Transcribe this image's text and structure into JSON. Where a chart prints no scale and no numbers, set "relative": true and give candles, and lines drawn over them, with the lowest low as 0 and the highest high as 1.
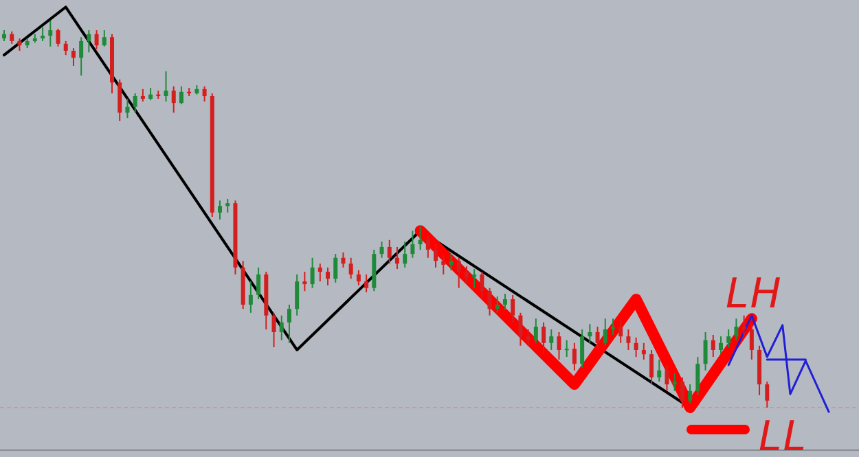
{
  "chart_data": {
    "type": "candlestick",
    "relative": true,
    "categories": [
      null,
      null,
      null,
      null,
      null,
      null,
      null,
      null,
      null,
      null,
      null,
      null,
      null,
      null,
      null,
      null,
      null,
      null,
      null,
      null,
      null,
      null,
      null,
      null,
      null,
      null,
      null,
      null,
      null,
      null,
      null,
      null,
      null,
      null,
      null,
      null,
      null,
      null,
      null,
      null,
      null,
      null,
      null,
      null,
      null,
      null,
      null,
      null,
      null,
      null,
      null,
      null,
      null,
      null,
      null,
      null,
      null,
      null,
      null,
      null,
      null,
      null,
      null,
      null,
      null,
      null,
      null,
      null,
      null,
      null,
      null,
      null,
      null,
      null,
      null,
      null,
      null,
      null,
      null,
      null,
      null,
      null,
      null,
      null,
      null,
      null,
      null,
      null,
      null,
      null,
      null,
      null,
      null,
      null,
      null,
      null,
      null,
      null,
      null,
      null,
      null,
      null,
      null,
      null,
      null,
      null,
      null,
      null
    ],
    "ohlc": [
      [
        0.954,
        0.975,
        0.947,
        0.965
      ],
      [
        0.965,
        0.972,
        0.94,
        0.947
      ],
      [
        0.947,
        0.954,
        0.922,
        0.936
      ],
      [
        0.936,
        0.954,
        0.929,
        0.947
      ],
      [
        0.947,
        0.965,
        0.943,
        0.954
      ],
      [
        0.954,
        0.982,
        0.947,
        0.961
      ],
      [
        0.961,
        1.0,
        0.933,
        0.975
      ],
      [
        0.975,
        0.979,
        0.933,
        0.94
      ],
      [
        0.94,
        0.947,
        0.911,
        0.922
      ],
      [
        0.922,
        0.929,
        0.883,
        0.904
      ],
      [
        0.904,
        0.957,
        0.858,
        0.947
      ],
      [
        0.947,
        0.975,
        0.918,
        0.965
      ],
      [
        0.965,
        0.975,
        0.926,
        0.936
      ],
      [
        0.936,
        0.975,
        0.933,
        0.957
      ],
      [
        0.957,
        0.965,
        0.812,
        0.84
      ],
      [
        0.84,
        0.848,
        0.741,
        0.762
      ],
      [
        0.762,
        0.798,
        0.748,
        0.777
      ],
      [
        0.777,
        0.812,
        0.762,
        0.805
      ],
      [
        0.805,
        0.823,
        0.791,
        0.798
      ],
      [
        0.798,
        0.826,
        0.794,
        0.809
      ],
      [
        0.809,
        0.819,
        0.798,
        0.805
      ],
      [
        0.805,
        0.869,
        0.791,
        0.819
      ],
      [
        0.819,
        0.83,
        0.762,
        0.787
      ],
      [
        0.787,
        0.83,
        0.784,
        0.816
      ],
      [
        0.816,
        0.826,
        0.805,
        0.812
      ],
      [
        0.812,
        0.833,
        0.809,
        0.823
      ],
      [
        0.823,
        0.83,
        0.791,
        0.805
      ],
      [
        0.805,
        0.812,
        0.493,
        0.504
      ],
      [
        0.504,
        0.535,
        0.486,
        0.521
      ],
      [
        0.521,
        0.539,
        0.504,
        0.528
      ],
      [
        0.528,
        0.535,
        0.344,
        0.362
      ],
      [
        0.362,
        0.379,
        0.255,
        0.266
      ],
      [
        0.266,
        0.326,
        0.245,
        0.291
      ],
      [
        0.291,
        0.362,
        0.28,
        0.344
      ],
      [
        0.344,
        0.351,
        0.202,
        0.238
      ],
      [
        0.238,
        0.245,
        0.156,
        0.195
      ],
      [
        0.195,
        0.238,
        0.174,
        0.22
      ],
      [
        0.22,
        0.266,
        0.167,
        0.255
      ],
      [
        0.255,
        0.344,
        0.238,
        0.326
      ],
      [
        0.326,
        0.351,
        0.301,
        0.319
      ],
      [
        0.319,
        0.387,
        0.309,
        0.362
      ],
      [
        0.362,
        0.372,
        0.326,
        0.351
      ],
      [
        0.351,
        0.362,
        0.316,
        0.333
      ],
      [
        0.333,
        0.397,
        0.323,
        0.387
      ],
      [
        0.387,
        0.401,
        0.362,
        0.372
      ],
      [
        0.372,
        0.387,
        0.333,
        0.344
      ],
      [
        0.344,
        0.355,
        0.316,
        0.326
      ],
      [
        0.326,
        0.344,
        0.298,
        0.309
      ],
      [
        0.309,
        0.408,
        0.301,
        0.397
      ],
      [
        0.397,
        0.429,
        0.387,
        0.415
      ],
      [
        0.415,
        0.433,
        0.372,
        0.387
      ],
      [
        0.387,
        0.415,
        0.358,
        0.372
      ],
      [
        0.372,
        0.429,
        0.362,
        0.397
      ],
      [
        0.397,
        0.457,
        0.387,
        0.422
      ],
      [
        0.422,
        0.468,
        0.408,
        0.433
      ],
      [
        0.433,
        0.443,
        0.387,
        0.408
      ],
      [
        0.408,
        0.422,
        0.362,
        0.379
      ],
      [
        0.379,
        0.394,
        0.344,
        0.369
      ],
      [
        0.369,
        0.397,
        0.355,
        0.379
      ],
      [
        0.379,
        0.387,
        0.309,
        0.351
      ],
      [
        0.351,
        0.365,
        0.323,
        0.337
      ],
      [
        0.337,
        0.358,
        0.309,
        0.344
      ],
      [
        0.344,
        0.351,
        0.28,
        0.301
      ],
      [
        0.301,
        0.309,
        0.238,
        0.255
      ],
      [
        0.255,
        0.287,
        0.245,
        0.266
      ],
      [
        0.266,
        0.294,
        0.252,
        0.28
      ],
      [
        0.28,
        0.291,
        0.22,
        0.238
      ],
      [
        0.238,
        0.245,
        0.16,
        0.184
      ],
      [
        0.184,
        0.202,
        0.16,
        0.174
      ],
      [
        0.174,
        0.23,
        0.167,
        0.209
      ],
      [
        0.209,
        0.22,
        0.138,
        0.167
      ],
      [
        0.167,
        0.202,
        0.149,
        0.184
      ],
      [
        0.184,
        0.195,
        0.124,
        0.149
      ],
      [
        0.149,
        0.174,
        0.131,
        0.152
      ],
      [
        0.152,
        0.167,
        0.096,
        0.113
      ],
      [
        0.113,
        0.202,
        0.103,
        0.184
      ],
      [
        0.184,
        0.216,
        0.167,
        0.195
      ],
      [
        0.195,
        0.209,
        0.152,
        0.167
      ],
      [
        0.167,
        0.23,
        0.16,
        0.202
      ],
      [
        0.202,
        0.23,
        0.188,
        0.209
      ],
      [
        0.209,
        0.227,
        0.167,
        0.184
      ],
      [
        0.184,
        0.202,
        0.149,
        0.167
      ],
      [
        0.167,
        0.181,
        0.131,
        0.149
      ],
      [
        0.149,
        0.167,
        0.124,
        0.138
      ],
      [
        0.138,
        0.149,
        0.06,
        0.078
      ],
      [
        0.078,
        0.124,
        0.067,
        0.096
      ],
      [
        0.096,
        0.11,
        0.043,
        0.06
      ],
      [
        0.06,
        0.089,
        0.043,
        0.067
      ],
      [
        0.067,
        0.078,
        0,
        0.018
      ],
      [
        0.018,
        0.06,
        0.011,
        0.043
      ],
      [
        0.043,
        0.131,
        0.032,
        0.113
      ],
      [
        0.113,
        0.195,
        0.096,
        0.174
      ],
      [
        0.174,
        0.188,
        0.131,
        0.149
      ],
      [
        0.149,
        0.184,
        0.138,
        0.167
      ],
      [
        0.167,
        0.202,
        0.156,
        0.184
      ],
      [
        0.184,
        0.23,
        0.174,
        0.209
      ],
      [
        0.209,
        0.238,
        0.188,
        0.202
      ],
      [
        0.202,
        0.216,
        0.124,
        0.149
      ],
      [
        0.149,
        0.16,
        0.032,
        0.06
      ],
      [
        0.06,
        0.067,
        0,
        0.018
      ],
      null,
      null,
      null,
      null,
      null,
      null,
      null,
      null
    ],
    "series": [
      {
        "type": "line",
        "color": "#000000",
        "values": [
          0.911,
          null,
          null,
          null,
          null,
          null,
          null,
          null,
          1.035,
          null,
          null,
          null,
          null,
          null,
          null,
          null,
          null,
          null,
          null,
          null,
          null,
          null,
          null,
          null,
          null,
          null,
          null,
          null,
          null,
          null,
          null,
          null,
          null,
          null,
          null,
          null,
          null,
          null,
          0.149,
          null,
          null,
          null,
          null,
          null,
          null,
          null,
          null,
          null,
          null,
          null,
          null,
          null,
          null,
          null,
          0.457,
          null,
          null,
          null,
          null,
          null,
          null,
          null,
          null,
          null,
          null,
          null,
          null,
          null,
          null,
          null,
          null,
          null,
          null,
          null,
          null,
          null,
          null,
          null,
          null,
          null,
          null,
          null,
          null,
          null,
          null,
          null,
          null,
          null,
          null,
          0,
          null,
          null,
          null,
          null,
          null,
          null,
          null,
          null,
          null,
          null,
          null,
          null,
          null,
          null,
          null,
          null,
          null,
          null
        ]
      },
      {
        "type": "line",
        "color": "#ff0000",
        "values": [
          null,
          null,
          null,
          null,
          null,
          null,
          null,
          null,
          null,
          null,
          null,
          null,
          null,
          null,
          null,
          null,
          null,
          null,
          null,
          null,
          null,
          null,
          null,
          null,
          null,
          null,
          null,
          null,
          null,
          null,
          null,
          null,
          null,
          null,
          null,
          null,
          null,
          null,
          null,
          null,
          null,
          null,
          null,
          null,
          null,
          null,
          null,
          null,
          null,
          null,
          null,
          null,
          null,
          null,
          0.457,
          null,
          null,
          null,
          null,
          null,
          null,
          null,
          null,
          null,
          null,
          null,
          null,
          null,
          null,
          null,
          null,
          null,
          null,
          null,
          0.06,
          null,
          null,
          null,
          null,
          null,
          null,
          null,
          0.28,
          null,
          null,
          null,
          null,
          null,
          null,
          0,
          null,
          null,
          null,
          null,
          null,
          null,
          null,
          0.23,
          null,
          null,
          null,
          null,
          null,
          null,
          null,
          null,
          null,
          null
        ]
      },
      {
        "type": "line",
        "color": "#1f1fd6",
        "values": [
          null,
          null,
          null,
          null,
          null,
          null,
          null,
          null,
          null,
          null,
          null,
          null,
          null,
          null,
          null,
          null,
          null,
          null,
          null,
          null,
          null,
          null,
          null,
          null,
          null,
          null,
          null,
          null,
          null,
          null,
          null,
          null,
          null,
          null,
          null,
          null,
          null,
          null,
          null,
          null,
          null,
          null,
          null,
          null,
          null,
          null,
          null,
          null,
          null,
          null,
          null,
          null,
          null,
          null,
          null,
          null,
          null,
          null,
          null,
          null,
          null,
          null,
          null,
          null,
          null,
          null,
          null,
          null,
          null,
          null,
          null,
          null,
          null,
          null,
          null,
          null,
          null,
          null,
          null,
          null,
          null,
          null,
          null,
          null,
          null,
          null,
          null,
          null,
          null,
          null,
          null,
          null,
          null,
          null,
          0.11,
          null,
          null,
          0.238,
          null,
          0.131,
          null,
          0.213,
          0.035,
          null,
          0.121,
          null,
          null,
          -0.011
        ]
      },
      {
        "type": "line",
        "color": "#1f1fd6",
        "values": [
          null,
          null,
          null,
          null,
          null,
          null,
          null,
          null,
          null,
          null,
          null,
          null,
          null,
          null,
          null,
          null,
          null,
          null,
          null,
          null,
          null,
          null,
          null,
          null,
          null,
          null,
          null,
          null,
          null,
          null,
          null,
          null,
          null,
          null,
          null,
          null,
          null,
          null,
          null,
          null,
          null,
          null,
          null,
          null,
          null,
          null,
          null,
          null,
          null,
          null,
          null,
          null,
          null,
          null,
          null,
          null,
          null,
          null,
          null,
          null,
          null,
          null,
          null,
          null,
          null,
          null,
          null,
          null,
          null,
          null,
          null,
          null,
          null,
          null,
          null,
          null,
          null,
          null,
          null,
          null,
          null,
          null,
          null,
          null,
          null,
          null,
          null,
          null,
          null,
          null,
          null,
          null,
          null,
          null,
          null,
          null,
          null,
          null,
          null,
          0.124,
          null,
          null,
          null,
          null,
          0.124,
          null,
          null,
          null
        ]
      }
    ],
    "ref_lines": [
      {
        "axis": "y",
        "value": 0,
        "color": "#c99a9a",
        "line_style": "dashed"
      }
    ],
    "annotations": [
      "LH",
      "LL"
    ]
  }
}
